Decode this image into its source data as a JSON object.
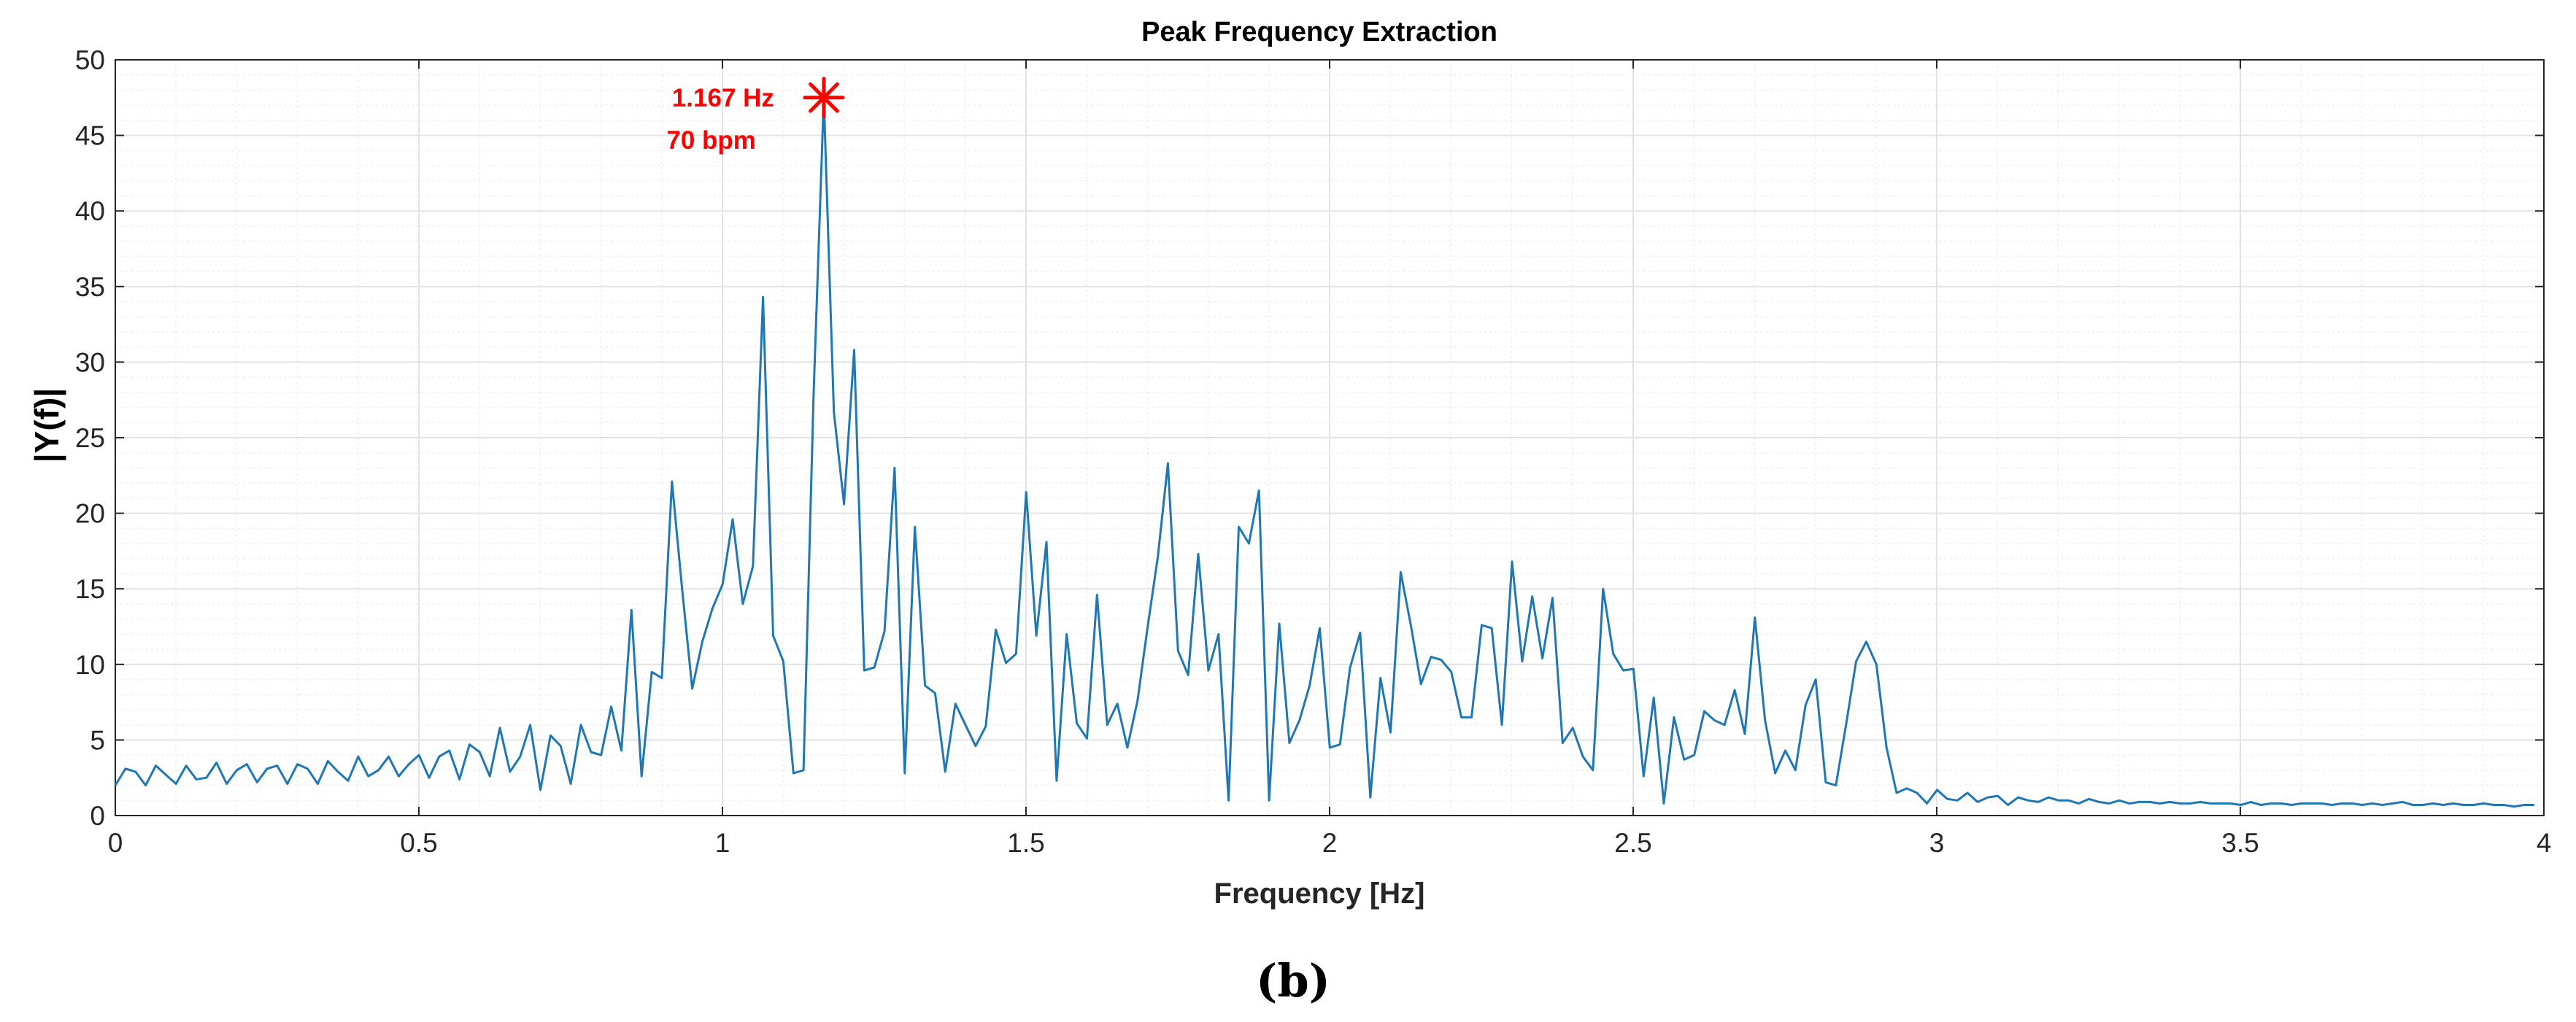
{
  "caption": "(b)",
  "colors": {
    "series": "#1f77b4",
    "peak": "#ff0000",
    "grid": "#e3e3e3",
    "minorGrid": "#efefef",
    "axis": "#262626"
  },
  "chart_data": {
    "type": "line",
    "title": "Peak Frequency Extraction",
    "xlabel": "Frequency [Hz]",
    "ylabel": "|Y(f)|",
    "xlim": [
      0,
      4
    ],
    "ylim": [
      0,
      50
    ],
    "xticks": [
      0,
      0.5,
      1,
      1.5,
      2,
      2.5,
      3,
      3.5,
      4
    ],
    "xtick_labels": [
      "0",
      "0.5",
      "1",
      "1.5",
      "2",
      "2.5",
      "3",
      "3.5",
      "4"
    ],
    "yticks": [
      0,
      5,
      10,
      15,
      20,
      25,
      30,
      35,
      40,
      45,
      50
    ],
    "ytick_labels": [
      "0",
      "5",
      "10",
      "15",
      "20",
      "25",
      "30",
      "35",
      "40",
      "45",
      "50"
    ],
    "grid": true,
    "minor_grid": true,
    "peak": {
      "x": 1.167,
      "y": 47.5,
      "marker": "asterisk",
      "label_hz": "1.167 Hz",
      "label_bpm": "70 bpm"
    },
    "series": [
      {
        "name": "|Y(f)|",
        "x_step": 0.01667,
        "values": [
          2.0,
          3.1,
          2.9,
          2.0,
          3.3,
          2.7,
          2.1,
          3.3,
          2.4,
          2.5,
          3.5,
          2.1,
          3.0,
          3.4,
          2.2,
          3.1,
          3.3,
          2.1,
          3.4,
          3.1,
          2.1,
          3.6,
          2.9,
          2.3,
          3.9,
          2.6,
          3.0,
          3.9,
          2.6,
          3.4,
          4.0,
          2.5,
          3.9,
          4.3,
          2.4,
          4.7,
          4.2,
          2.6,
          5.8,
          2.9,
          3.9,
          6.0,
          1.7,
          5.3,
          4.6,
          2.1,
          6.0,
          4.2,
          4.0,
          7.2,
          4.3,
          13.6,
          2.6,
          9.5,
          9.1,
          22.1,
          15.0,
          8.4,
          11.5,
          13.7,
          15.3,
          19.6,
          14.0,
          16.5,
          34.3,
          11.9,
          10.2,
          2.8,
          3.0,
          28.0,
          47.5,
          26.7,
          20.6,
          30.8,
          9.6,
          9.8,
          12.2,
          23.0,
          2.8,
          19.1,
          8.6,
          8.1,
          2.9,
          7.4,
          6.0,
          4.6,
          5.9,
          12.3,
          10.1,
          10.7,
          21.4,
          11.9,
          18.1,
          2.3,
          12.0,
          6.1,
          5.1,
          14.6,
          6.0,
          7.4,
          4.5,
          7.6,
          12.5,
          17.1,
          23.3,
          10.9,
          9.3,
          17.3,
          9.6,
          12.0,
          1.0,
          19.1,
          18.0,
          21.5,
          1.0,
          12.7,
          4.8,
          6.3,
          8.6,
          12.4,
          4.5,
          4.7,
          9.8,
          12.1,
          1.2,
          9.1,
          5.5,
          16.1,
          12.6,
          8.7,
          10.5,
          10.3,
          9.5,
          6.5,
          6.5,
          12.6,
          12.4,
          6.0,
          16.8,
          10.2,
          14.5,
          10.4,
          14.4,
          4.8,
          5.8,
          3.9,
          3.0,
          15.0,
          10.7,
          9.6,
          9.7,
          2.6,
          7.8,
          0.8,
          6.5,
          3.7,
          4.0,
          6.9,
          6.3,
          6.0,
          8.3,
          5.4,
          13.1,
          6.3,
          2.8,
          4.3,
          3.0,
          7.3,
          9.0,
          2.2,
          2.0,
          6.0,
          10.2,
          11.5,
          10.0,
          4.5,
          1.5,
          1.8,
          1.5,
          0.8,
          1.7,
          1.1,
          1.0,
          1.5,
          0.9,
          1.2,
          1.3,
          0.7,
          1.2,
          1.0,
          0.9,
          1.2,
          1.0,
          1.0,
          0.8,
          1.1,
          0.9,
          0.8,
          1.0,
          0.8,
          0.9,
          0.9,
          0.8,
          0.9,
          0.8,
          0.8,
          0.9,
          0.8,
          0.8,
          0.8,
          0.7,
          0.9,
          0.7,
          0.8,
          0.8,
          0.7,
          0.8,
          0.8,
          0.8,
          0.7,
          0.8,
          0.8,
          0.7,
          0.8,
          0.7,
          0.8,
          0.9,
          0.7,
          0.7,
          0.8,
          0.7,
          0.8,
          0.7,
          0.7,
          0.8,
          0.7,
          0.7,
          0.6,
          0.7,
          0.7
        ]
      }
    ]
  }
}
